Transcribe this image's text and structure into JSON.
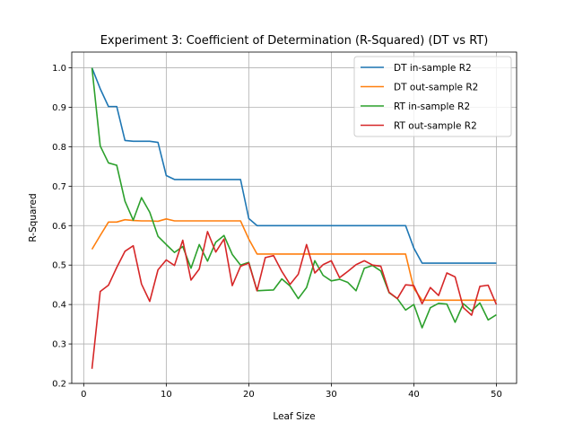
{
  "chart_data": {
    "type": "line",
    "title": "Experiment 3: Coefficient of Determination (R-Squared) (DT vs RT)",
    "xlabel": "Leaf Size",
    "ylabel": "R-Squared",
    "xlim": [
      -1.45,
      52.45
    ],
    "ylim": [
      0.2,
      1.04
    ],
    "grid": true,
    "legend_position": "top-right",
    "x": [
      1,
      2,
      3,
      4,
      5,
      6,
      7,
      8,
      9,
      10,
      11,
      12,
      13,
      14,
      15,
      16,
      17,
      18,
      19,
      20,
      21,
      22,
      23,
      24,
      25,
      26,
      27,
      28,
      29,
      30,
      31,
      32,
      33,
      34,
      35,
      36,
      37,
      38,
      39,
      40,
      41,
      42,
      43,
      44,
      45,
      46,
      47,
      48,
      49,
      50
    ],
    "x_ticks": [
      "0",
      "10",
      "20",
      "30",
      "40",
      "50"
    ],
    "y_ticks": [
      "0.2",
      "0.3",
      "0.4",
      "0.5",
      "0.6",
      "0.7",
      "0.8",
      "0.9",
      "1.0"
    ],
    "series": [
      {
        "name": "DT in-sample R2",
        "color": "#1f77b4",
        "values": [
          1.0,
          0.947,
          0.902,
          0.902,
          0.816,
          0.814,
          0.814,
          0.814,
          0.811,
          0.727,
          0.717,
          0.717,
          0.717,
          0.717,
          0.717,
          0.717,
          0.717,
          0.717,
          0.717,
          0.618,
          0.6,
          0.6,
          0.6,
          0.6,
          0.6,
          0.6,
          0.6,
          0.6,
          0.6,
          0.6,
          0.6,
          0.6,
          0.6,
          0.6,
          0.6,
          0.6,
          0.6,
          0.6,
          0.6,
          0.543,
          0.505,
          0.505,
          0.505,
          0.505,
          0.505,
          0.505,
          0.505,
          0.505,
          0.505,
          0.505
        ]
      },
      {
        "name": "DT out-sample R2",
        "color": "#ff7f0e",
        "values": [
          0.54,
          0.575,
          0.609,
          0.609,
          0.615,
          0.613,
          0.612,
          0.612,
          0.611,
          0.617,
          0.612,
          0.612,
          0.612,
          0.612,
          0.612,
          0.612,
          0.612,
          0.612,
          0.612,
          0.566,
          0.528,
          0.528,
          0.528,
          0.528,
          0.528,
          0.528,
          0.528,
          0.528,
          0.528,
          0.528,
          0.528,
          0.528,
          0.528,
          0.528,
          0.528,
          0.528,
          0.528,
          0.528,
          0.528,
          0.441,
          0.411,
          0.411,
          0.411,
          0.411,
          0.411,
          0.411,
          0.411,
          0.411,
          0.411,
          0.411
        ]
      },
      {
        "name": "RT in-sample R2",
        "color": "#2ca02c",
        "values": [
          1.0,
          0.802,
          0.759,
          0.753,
          0.662,
          0.614,
          0.671,
          0.634,
          0.573,
          0.552,
          0.532,
          0.547,
          0.492,
          0.552,
          0.51,
          0.558,
          0.575,
          0.527,
          0.5,
          0.507,
          0.435,
          0.436,
          0.437,
          0.465,
          0.447,
          0.415,
          0.443,
          0.511,
          0.474,
          0.46,
          0.464,
          0.456,
          0.435,
          0.492,
          0.499,
          0.485,
          0.43,
          0.415,
          0.386,
          0.4,
          0.341,
          0.392,
          0.403,
          0.401,
          0.355,
          0.402,
          0.384,
          0.404,
          0.361,
          0.374
        ]
      },
      {
        "name": "RT out-sample R2",
        "color": "#d62728",
        "values": [
          0.237,
          0.433,
          0.449,
          0.494,
          0.535,
          0.549,
          0.452,
          0.408,
          0.488,
          0.513,
          0.499,
          0.563,
          0.462,
          0.49,
          0.585,
          0.533,
          0.566,
          0.448,
          0.497,
          0.505,
          0.435,
          0.519,
          0.524,
          0.484,
          0.451,
          0.477,
          0.552,
          0.48,
          0.501,
          0.511,
          0.468,
          0.484,
          0.501,
          0.511,
          0.5,
          0.497,
          0.431,
          0.415,
          0.45,
          0.448,
          0.402,
          0.443,
          0.423,
          0.48,
          0.47,
          0.392,
          0.373,
          0.446,
          0.449,
          0.4
        ]
      }
    ]
  }
}
